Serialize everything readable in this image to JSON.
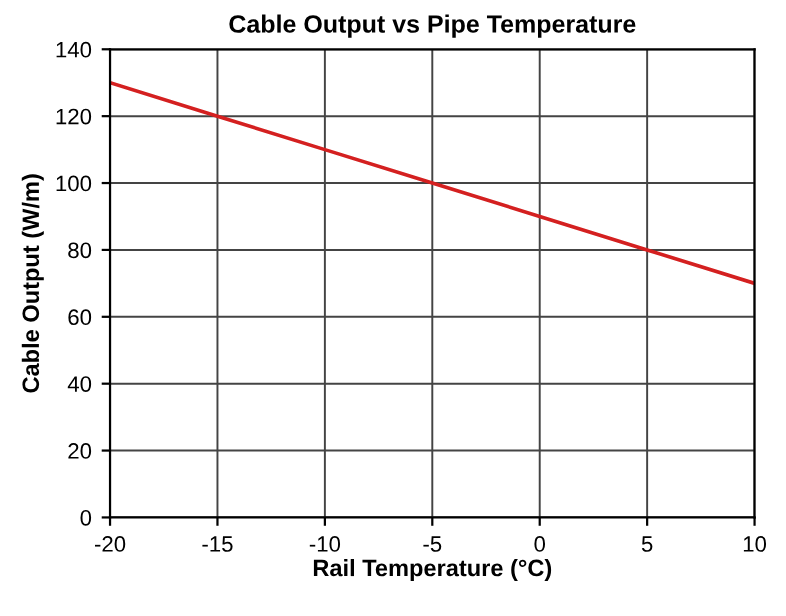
{
  "chart_data": {
    "type": "line",
    "title": "Cable Output vs Pipe Temperature",
    "xlabel": "Rail Temperature (°C)",
    "ylabel": "Cable Output (W/m)",
    "x": [
      -20,
      -15,
      -10,
      -5,
      0,
      5,
      10
    ],
    "series": [
      {
        "color": "#d42020",
        "values": [
          130,
          120,
          110,
          100,
          90,
          80,
          70
        ]
      }
    ],
    "xlim": [
      -20,
      10
    ],
    "xticks": [
      -20,
      -15,
      -10,
      -5,
      0,
      5,
      10
    ],
    "ylim": [
      0,
      140
    ],
    "yticks": [
      0,
      20,
      40,
      60,
      80,
      100,
      120,
      140
    ],
    "grid": true,
    "marker": "none",
    "line_style": "solid"
  }
}
